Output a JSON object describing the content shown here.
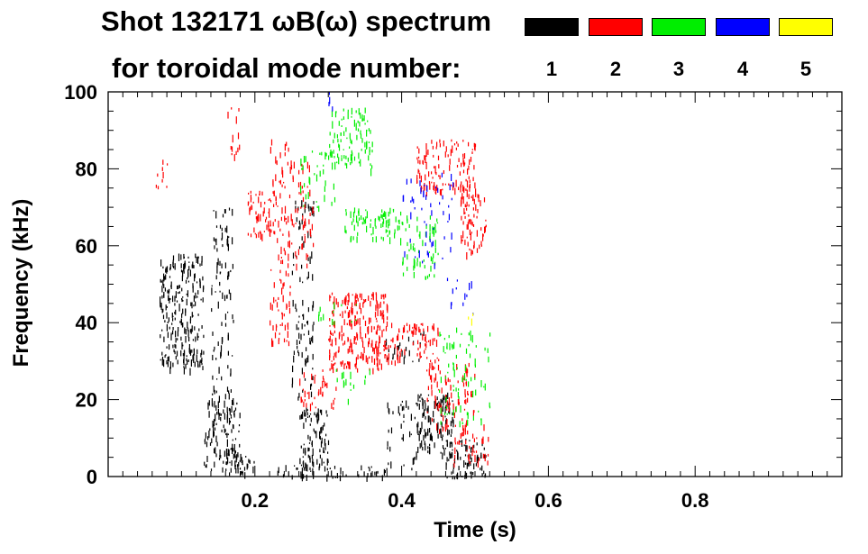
{
  "chart_data": {
    "type": "scatter",
    "title_line1": "Shot 132171 ωB(ω) spectrum",
    "title_line2": "for toroidal mode number:",
    "xlabel": "Time (s)",
    "ylabel": "Frequency (kHz)",
    "xlim": [
      0.0,
      1.0
    ],
    "ylim": [
      0,
      100
    ],
    "xticks": [
      {
        "value": 0.2,
        "label": "0.2"
      },
      {
        "value": 0.4,
        "label": "0.4"
      },
      {
        "value": 0.6,
        "label": "0.6"
      },
      {
        "value": 0.8,
        "label": "0.8"
      }
    ],
    "yticks": [
      {
        "value": 0,
        "label": "0"
      },
      {
        "value": 20,
        "label": "20"
      },
      {
        "value": 40,
        "label": "40"
      },
      {
        "value": 60,
        "label": "60"
      },
      {
        "value": 80,
        "label": "80"
      },
      {
        "value": 100,
        "label": "100"
      }
    ],
    "legend": [
      {
        "mode": "1",
        "color": "#000000"
      },
      {
        "mode": "2",
        "color": "#ff0000"
      },
      {
        "mode": "3",
        "color": "#00ee00"
      },
      {
        "mode": "4",
        "color": "#0000ff"
      },
      {
        "mode": "5",
        "color": "#ffff00"
      }
    ],
    "series": [
      {
        "name": "1",
        "color": "#000000",
        "regions": [
          {
            "x": [
              0.07,
              0.13
            ],
            "y": [
              28,
              58
            ],
            "density": 0.55
          },
          {
            "x": [
              0.13,
              0.18
            ],
            "y": [
              2,
              20
            ],
            "density": 0.5
          },
          {
            "x": [
              0.16,
              0.2
            ],
            "y": [
              1,
              6
            ],
            "density": 0.6
          },
          {
            "x": [
              0.14,
              0.17
            ],
            "y": [
              20,
              70
            ],
            "density": 0.25
          },
          {
            "x": [
              0.25,
              0.28
            ],
            "y": [
              20,
              72
            ],
            "density": 0.25
          },
          {
            "x": [
              0.26,
              0.3
            ],
            "y": [
              3,
              18
            ],
            "density": 0.55
          },
          {
            "x": [
              0.23,
              0.38
            ],
            "y": [
              0,
              3
            ],
            "density": 0.45
          },
          {
            "x": [
              0.42,
              0.47
            ],
            "y": [
              6,
              22
            ],
            "density": 0.65
          },
          {
            "x": [
              0.46,
              0.515
            ],
            "y": [
              0,
              10
            ],
            "density": 0.55
          },
          {
            "x": [
              0.37,
              0.43
            ],
            "y": [
              30,
              38
            ],
            "density": 0.2
          },
          {
            "x": [
              0.38,
              0.42
            ],
            "y": [
              2,
              20
            ],
            "density": 0.2
          }
        ]
      },
      {
        "name": "2",
        "color": "#ff0000",
        "regions": [
          {
            "x": [
              0.19,
              0.22
            ],
            "y": [
              63,
              75
            ],
            "density": 0.55
          },
          {
            "x": [
              0.22,
              0.25
            ],
            "y": [
              35,
              88
            ],
            "density": 0.3
          },
          {
            "x": [
              0.25,
              0.28
            ],
            "y": [
              55,
              82
            ],
            "density": 0.25
          },
          {
            "x": [
              0.3,
              0.38
            ],
            "y": [
              28,
              48
            ],
            "density": 0.6
          },
          {
            "x": [
              0.38,
              0.45
            ],
            "y": [
              30,
              40
            ],
            "density": 0.45
          },
          {
            "x": [
              0.42,
              0.5
            ],
            "y": [
              74,
              88
            ],
            "density": 0.45
          },
          {
            "x": [
              0.48,
              0.515
            ],
            "y": [
              58,
              74
            ],
            "density": 0.5
          },
          {
            "x": [
              0.43,
              0.5
            ],
            "y": [
              12,
              30
            ],
            "density": 0.3
          },
          {
            "x": [
              0.47,
              0.52
            ],
            "y": [
              3,
              14
            ],
            "density": 0.3
          },
          {
            "x": [
              0.26,
              0.31
            ],
            "y": [
              18,
              28
            ],
            "density": 0.3
          },
          {
            "x": [
              0.06,
              0.08
            ],
            "y": [
              75,
              84
            ],
            "density": 0.2
          },
          {
            "x": [
              0.16,
              0.18
            ],
            "y": [
              80,
              97
            ],
            "density": 0.15
          }
        ]
      },
      {
        "name": "3",
        "color": "#00ee00",
        "regions": [
          {
            "x": [
              0.3,
              0.36
            ],
            "y": [
              80,
              96
            ],
            "density": 0.4
          },
          {
            "x": [
              0.32,
              0.4
            ],
            "y": [
              62,
              70
            ],
            "density": 0.5
          },
          {
            "x": [
              0.4,
              0.45
            ],
            "y": [
              52,
              68
            ],
            "density": 0.3
          },
          {
            "x": [
              0.45,
              0.52
            ],
            "y": [
              14,
              40
            ],
            "density": 0.18
          },
          {
            "x": [
              0.26,
              0.31
            ],
            "y": [
              70,
              85
            ],
            "density": 0.2
          },
          {
            "x": [
              0.28,
              0.34
            ],
            "y": [
              40,
              46
            ],
            "density": 0.15
          },
          {
            "x": [
              0.31,
              0.36
            ],
            "y": [
              20,
              28
            ],
            "density": 0.15
          }
        ]
      },
      {
        "name": "4",
        "color": "#0000ff",
        "regions": [
          {
            "x": [
              0.4,
              0.47
            ],
            "y": [
              55,
              80
            ],
            "density": 0.12
          },
          {
            "x": [
              0.46,
              0.5
            ],
            "y": [
              42,
              52
            ],
            "density": 0.12
          },
          {
            "x": [
              0.3,
              0.31
            ],
            "y": [
              96,
              100
            ],
            "density": 0.4
          }
        ]
      },
      {
        "name": "5",
        "color": "#ffff00",
        "regions": [
          {
            "x": [
              0.49,
              0.5
            ],
            "y": [
              41,
              43
            ],
            "density": 0.4
          }
        ]
      }
    ]
  }
}
